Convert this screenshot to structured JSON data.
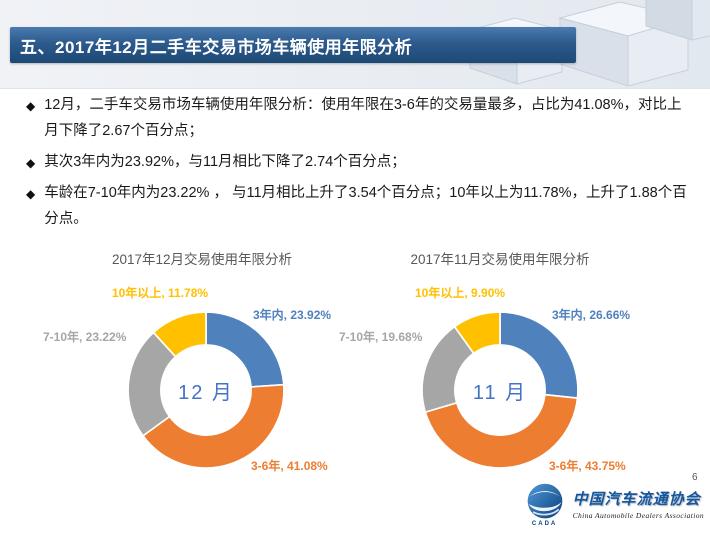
{
  "title_bar": {
    "text": "五、2017年12月二手车交易市场车辆使用年限分析"
  },
  "bullet_marker": "◆",
  "bullets": [
    "12月，二手车交易市场车辆使用年限分析：使用年限在3-6年的交易量最多，占比为41.08%，对比上月下降了2.67个百分点；",
    "其次3年内为23.92%，与11月相比下降了2.74个百分点；",
    "车龄在7-10年内为23.22% ， 与11月相比上升了3.54个百分点；10年以上为11.78%，上升了1.88个百分点。"
  ],
  "page_number": "6",
  "logo": {
    "badge": "CADA",
    "name_cn": "中国汽车流通协会",
    "name_en": "China Automobile Dealers Association"
  },
  "colors": {
    "title_bar_top": "#4a7ab0",
    "title_bar_bottom": "#1d4974",
    "slice_blue": "#4f81bd",
    "slice_orange": "#ed7d31",
    "slice_gray": "#a6a6a6",
    "slice_yellow": "#ffc000",
    "center_label_blue": "#4472c4",
    "logo_blue": "#1456a0"
  },
  "chart_data": [
    {
      "type": "pie",
      "donut": true,
      "title": "2017年12月交易使用年限分析",
      "center_label": "12 月",
      "categories": [
        "3年内",
        "3-6年",
        "7-10年",
        "10年以上"
      ],
      "values": [
        23.92,
        41.08,
        23.22,
        11.78
      ],
      "labels": [
        "3年内, 23.92%",
        "3-6年, 41.08%",
        "7-10年, 23.22%",
        "10年以上, 11.78%"
      ],
      "colors": [
        "#4f81bd",
        "#ed7d31",
        "#a6a6a6",
        "#ffc000"
      ],
      "start_angle_deg": 0,
      "direction": "clockwise",
      "legend": "none"
    },
    {
      "type": "pie",
      "donut": true,
      "title": "2017年11月交易使用年限分析",
      "center_label": "11 月",
      "categories": [
        "3年内",
        "3-6年",
        "7-10年",
        "10年以上"
      ],
      "values": [
        26.66,
        43.75,
        19.68,
        9.9
      ],
      "labels": [
        "3年内, 26.66%",
        "3-6年, 43.75%",
        "7-10年, 19.68%",
        "10年以上, 9.90%"
      ],
      "colors": [
        "#4f81bd",
        "#ed7d31",
        "#a6a6a6",
        "#ffc000"
      ],
      "start_angle_deg": 0,
      "direction": "clockwise",
      "legend": "none"
    }
  ]
}
